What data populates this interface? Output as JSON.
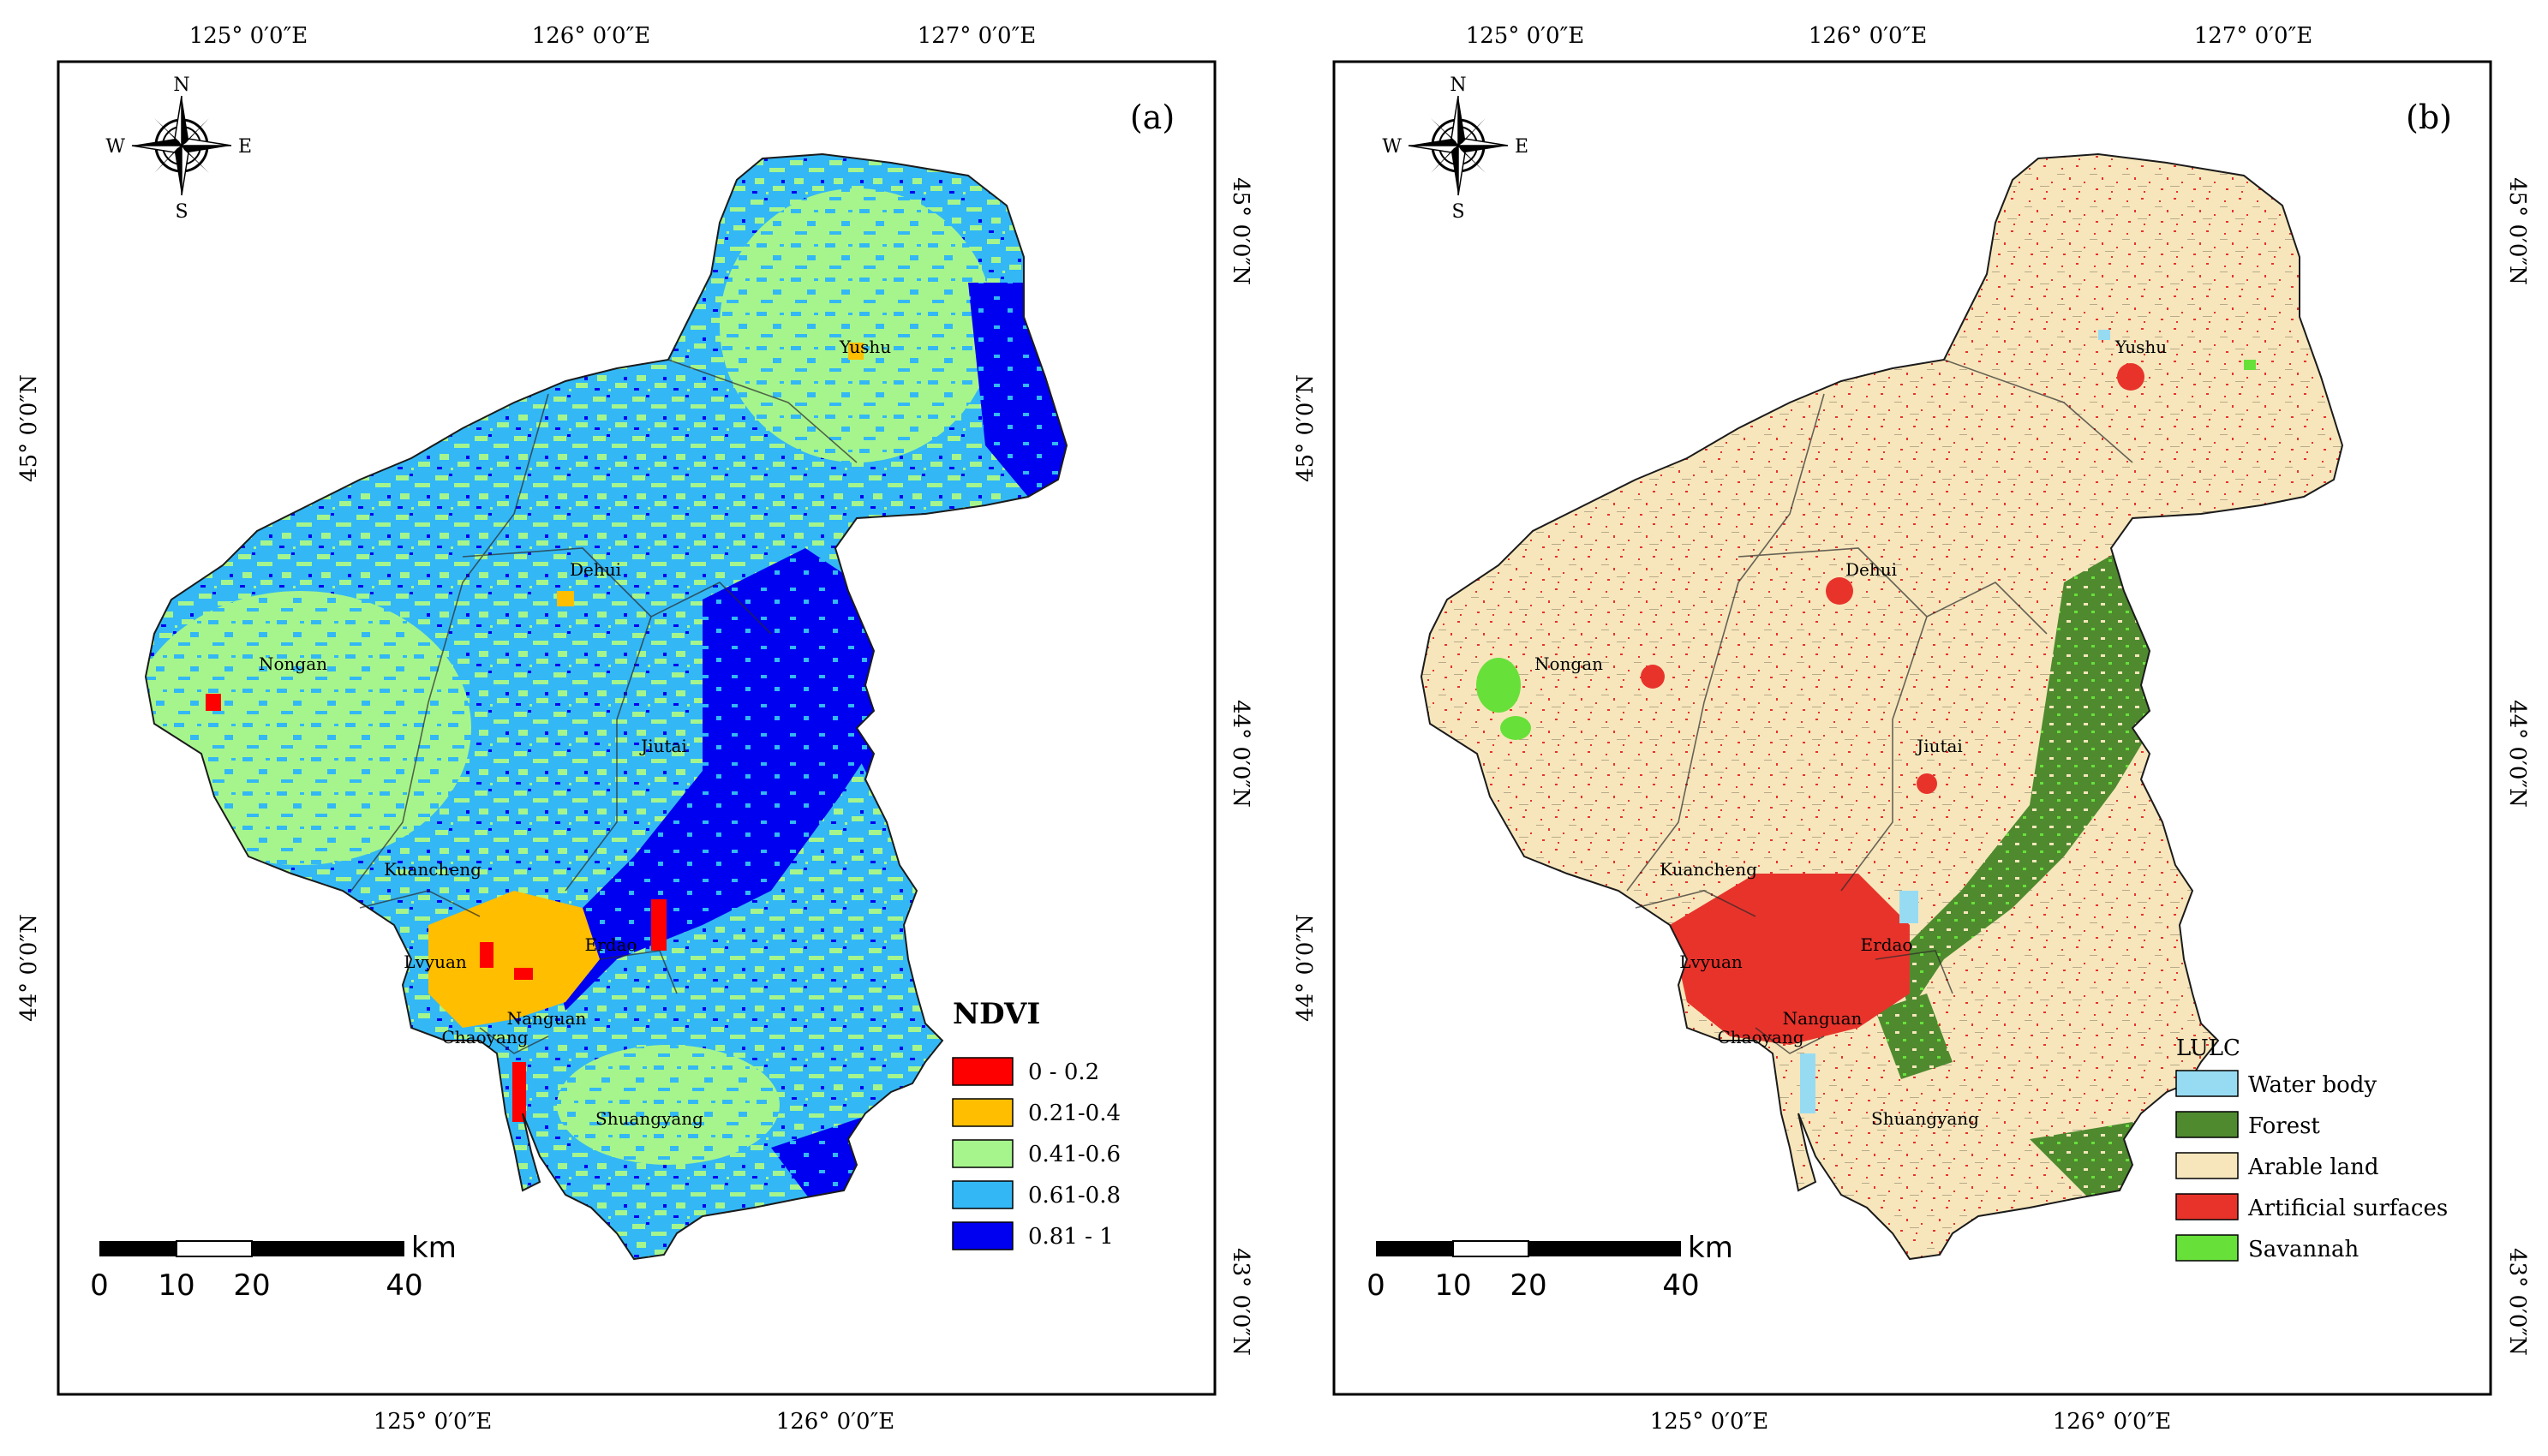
{
  "colors": {
    "ndvi_0_02": "#ff0000",
    "ndvi_021_04": "#ffbe00",
    "ndvi_041_06": "#a6f58c",
    "ndvi_061_08": "#33b8f5",
    "ndvi_081_1": "#0000f0",
    "water": "#97dbf2",
    "forest": "#4f8a2f",
    "arable": "#f7e6bb",
    "artificial": "#e8332b",
    "savannah": "#68e03a"
  },
  "panels": [
    {
      "label": "(a)",
      "legend": {
        "title": "NDVI",
        "items": [
          {
            "label": "0  - 0.2",
            "color": "#ff0000"
          },
          {
            "label": "0.21-0.4",
            "color": "#ffbe00"
          },
          {
            "label": "0.41-0.6",
            "color": "#a6f58c"
          },
          {
            "label": "0.61-0.8",
            "color": "#33b8f5"
          },
          {
            "label": "0.81 - 1",
            "color": "#0000f0"
          }
        ]
      }
    },
    {
      "label": "(b)",
      "legend": {
        "title": "LULC",
        "items": [
          {
            "label": "Water body",
            "color": "#97dbf2"
          },
          {
            "label": "Forest",
            "color": "#4f8a2f"
          },
          {
            "label": "Arable land",
            "color": "#f7e6bb"
          },
          {
            "label": "Artificial surfaces",
            "color": "#e8332b"
          },
          {
            "label": "Savannah",
            "color": "#68e03a"
          }
        ]
      }
    }
  ],
  "coords": {
    "top": [
      "125° 0′0″E",
      "126° 0′0″E",
      "127° 0′0″E"
    ],
    "bottom": [
      "125° 0′0″E",
      "126° 0′0″E"
    ],
    "left": [
      "45° 0′0″N",
      "44° 0′0″N"
    ],
    "right": [
      "45° 0′0″N",
      "44° 0′0″N",
      "43° 0′0″N"
    ]
  },
  "compass": {
    "n": "N",
    "s": "S",
    "e": "E",
    "w": "W"
  },
  "places": [
    "Yushu",
    "Dehui",
    "Nongan",
    "Jiutai",
    "Kuancheng",
    "Lvyuan",
    "Erdao",
    "Nanguan",
    "Chaoyang",
    "Shuangyang"
  ],
  "scalebar": {
    "unit": "km",
    "ticks": [
      "0",
      "10",
      "20",
      "40"
    ]
  }
}
